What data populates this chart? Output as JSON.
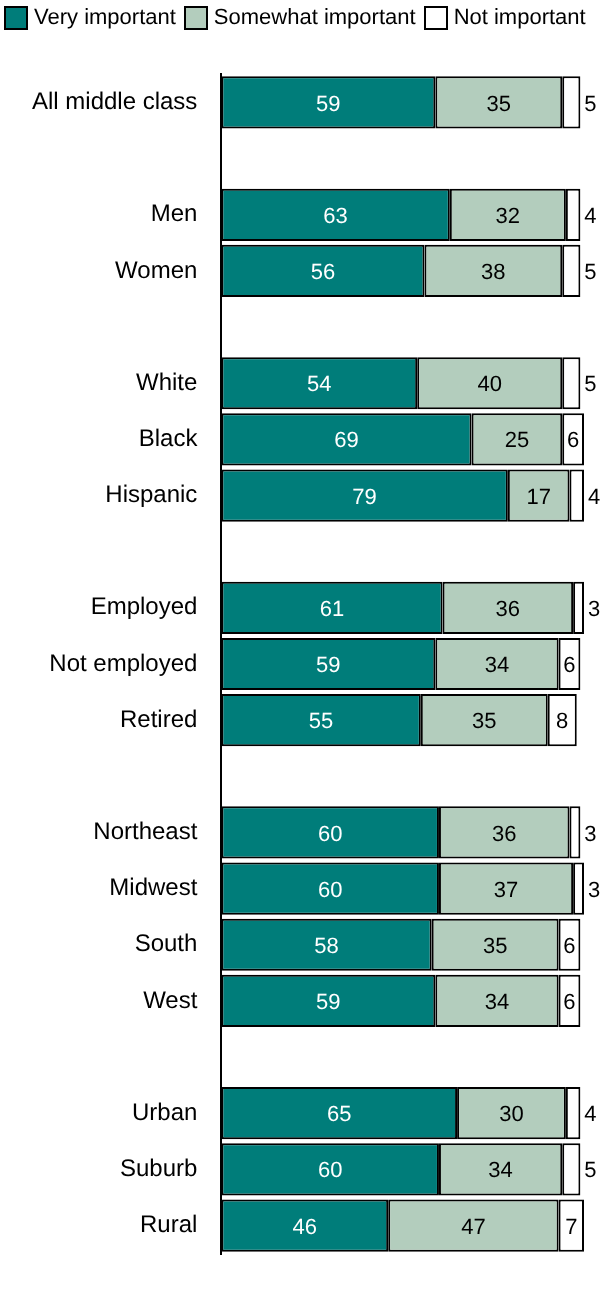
{
  "chart_data": {
    "type": "bar",
    "orientation": "horizontal",
    "stacked": true,
    "data_labels": true,
    "legend": "top left",
    "tick_labels": "y",
    "grid": false,
    "xlim": [
      0,
      100
    ],
    "categories": [
      "All middle class",
      null,
      "Men",
      "Women",
      null,
      "White",
      "Black",
      "Hispanic",
      null,
      "Employed",
      "Not employed",
      "Retired",
      null,
      "Northeast",
      "Midwest",
      "South",
      "West",
      null,
      "Urban",
      "Suburb",
      "Rural"
    ],
    "series": [
      {
        "name": "Very important",
        "color": "#007d7a",
        "values": [
          59,
          null,
          63,
          56,
          null,
          54,
          69,
          79,
          null,
          61,
          59,
          55,
          null,
          60,
          60,
          58,
          59,
          null,
          65,
          60,
          46
        ]
      },
      {
        "name": "Somewhat important",
        "color": "#b3cdbd",
        "values": [
          35,
          null,
          32,
          38,
          null,
          40,
          25,
          17,
          null,
          36,
          34,
          35,
          null,
          36,
          37,
          35,
          34,
          null,
          30,
          34,
          47
        ]
      },
      {
        "name": "Not important",
        "color": "#ffffff",
        "values": [
          5,
          null,
          4,
          5,
          null,
          5,
          6,
          4,
          null,
          3,
          6,
          8,
          null,
          3,
          3,
          6,
          6,
          null,
          4,
          5,
          7
        ]
      }
    ]
  }
}
